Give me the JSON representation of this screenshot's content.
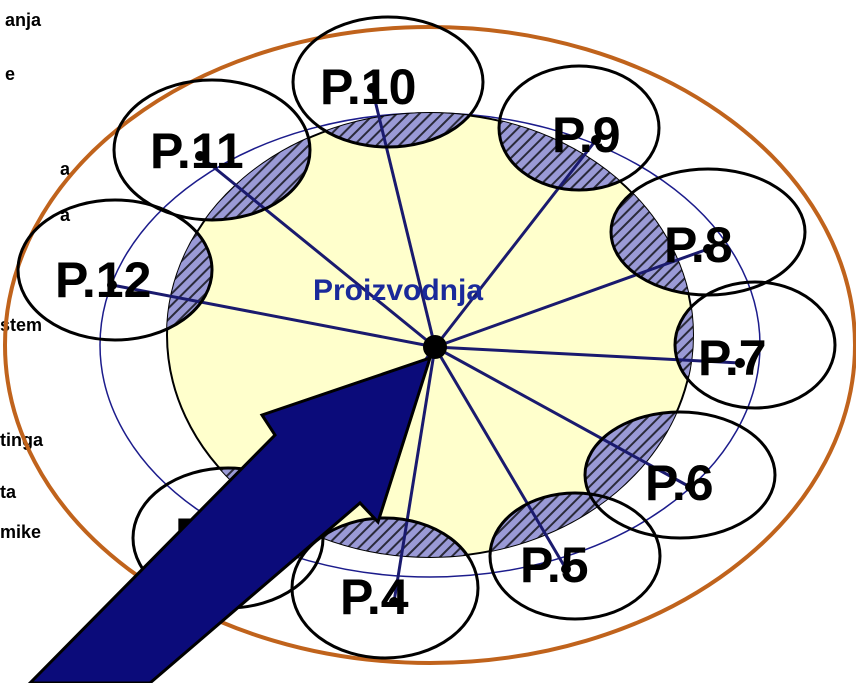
{
  "center_label": "Proizvodnja",
  "side_text": [
    "anja",
    "e",
    "a",
    "a",
    "stem",
    "tinga",
    "ta",
    "mike"
  ],
  "petals": [
    {
      "id": "p10",
      "label": "P.10"
    },
    {
      "id": "p9",
      "label": "P.9"
    },
    {
      "id": "p8",
      "label": "P.8"
    },
    {
      "id": "p7",
      "label": "P.7"
    },
    {
      "id": "p6",
      "label": "P.6"
    },
    {
      "id": "p5",
      "label": "P.5"
    },
    {
      "id": "p4",
      "label": "P.4"
    },
    {
      "id": "p3",
      "label": "P.3"
    },
    {
      "id": "p11",
      "label": "P.11"
    },
    {
      "id": "p12",
      "label": "P.12"
    }
  ],
  "colors": {
    "outer_ring": "#c0631c",
    "inner_ring": "#1c1c8c",
    "core_fill": "#ffffcc",
    "spoke": "#1a1a6e",
    "arrow": "#0b0b7a",
    "hatch": "#9a9ad6",
    "center_text": "#1a2a9a"
  }
}
